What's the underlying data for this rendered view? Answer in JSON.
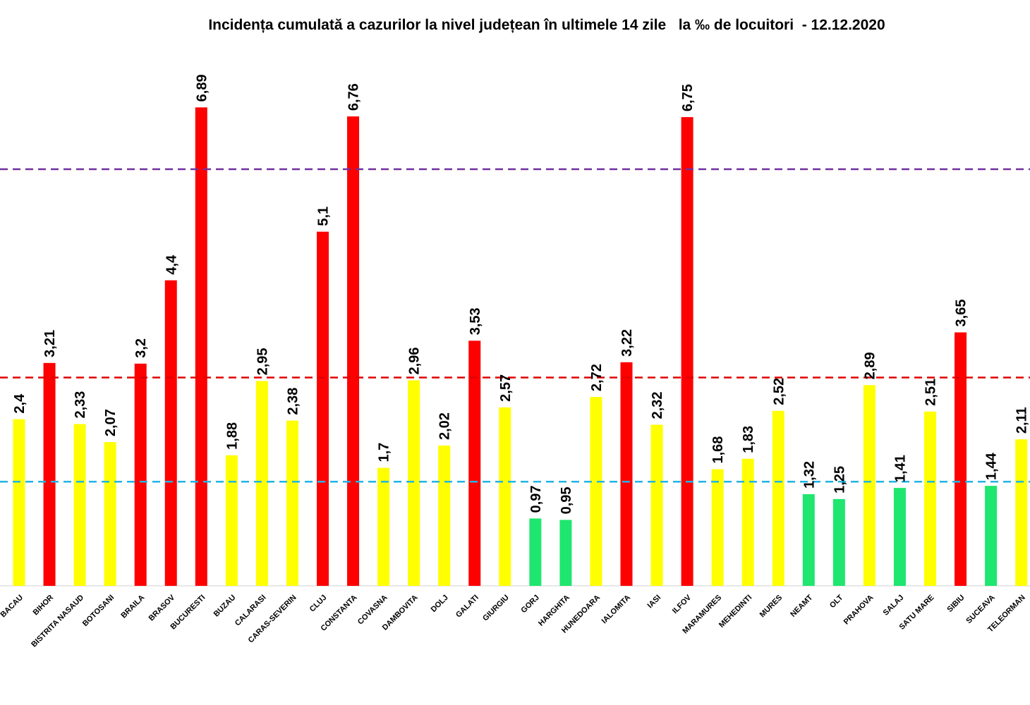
{
  "chart_data": {
    "type": "bar",
    "title": "Incidența cumulată a cazurilor la nivel județean în ultimele 14 zile   la ‰ de locuitori  - 12.12.2020",
    "categories": [
      "BACAU",
      "BIHOR",
      "BISTRITA NASAUD",
      "BOTOSANI",
      "BRAILA",
      "BRASOV",
      "BUCURESTI",
      "BUZAU",
      "CALARASI",
      "CARAS-SEVERIN",
      "CLUJ",
      "CONSTANTA",
      "COVASNA",
      "DAMBOVITA",
      "DOLJ",
      "GALATI",
      "GIURGIU",
      "GORJ",
      "HARGHITA",
      "HUNEDOARA",
      "IALOMITA",
      "IASI",
      "ILFOV",
      "MARAMURES",
      "MEHEDINTI",
      "MURES",
      "NEAMT",
      "OLT",
      "PRAHOVA",
      "SALAJ",
      "SATU MARE",
      "SIBIU",
      "SUCEAVA",
      "TELEORMAN"
    ],
    "values": [
      2.4,
      3.21,
      2.33,
      2.07,
      3.2,
      4.4,
      6.89,
      1.88,
      2.95,
      2.38,
      5.1,
      6.76,
      1.7,
      2.96,
      2.02,
      3.53,
      2.57,
      0.97,
      0.95,
      2.72,
      3.22,
      2.32,
      6.75,
      1.68,
      1.83,
      2.52,
      1.32,
      1.25,
      2.89,
      1.41,
      2.51,
      3.65,
      1.44,
      2.11
    ],
    "value_labels": [
      "2,4",
      "3,21",
      "2,33",
      "2,07",
      "3,2",
      "4,4",
      "6,89",
      "1,88",
      "2,95",
      "2,38",
      "5,1",
      "6,76",
      "1,7",
      "2,96",
      "2,02",
      "3,53",
      "2,57",
      "0,97",
      "0,95",
      "2,72",
      "3,22",
      "2,32",
      "6,75",
      "1,68",
      "1,83",
      "2,52",
      "1,32",
      "1,25",
      "2,89",
      "1,41",
      "2,51",
      "3,65",
      "1,44",
      "2,11"
    ],
    "colors": {
      "green": "#1ee66e",
      "yellow": "#ffff00",
      "red": "#ff0000"
    },
    "bar_color_keys": [
      "yellow",
      "red",
      "yellow",
      "yellow",
      "red",
      "red",
      "red",
      "yellow",
      "yellow",
      "yellow",
      "red",
      "red",
      "yellow",
      "yellow",
      "yellow",
      "red",
      "yellow",
      "green",
      "green",
      "yellow",
      "red",
      "yellow",
      "red",
      "yellow",
      "yellow",
      "yellow",
      "green",
      "green",
      "yellow",
      "green",
      "yellow",
      "red",
      "green",
      "yellow"
    ],
    "threshold_lines": [
      {
        "value": 1.5,
        "color": "#1fb4e6",
        "style": "dashed"
      },
      {
        "value": 3.0,
        "color": "#e00000",
        "style": "dashed"
      },
      {
        "value": 6.0,
        "color": "#7030a0",
        "style": "dashed"
      }
    ],
    "ylim": [
      0,
      7.5
    ],
    "xlabel": "",
    "ylabel": "",
    "grid": false,
    "legend": false
  }
}
